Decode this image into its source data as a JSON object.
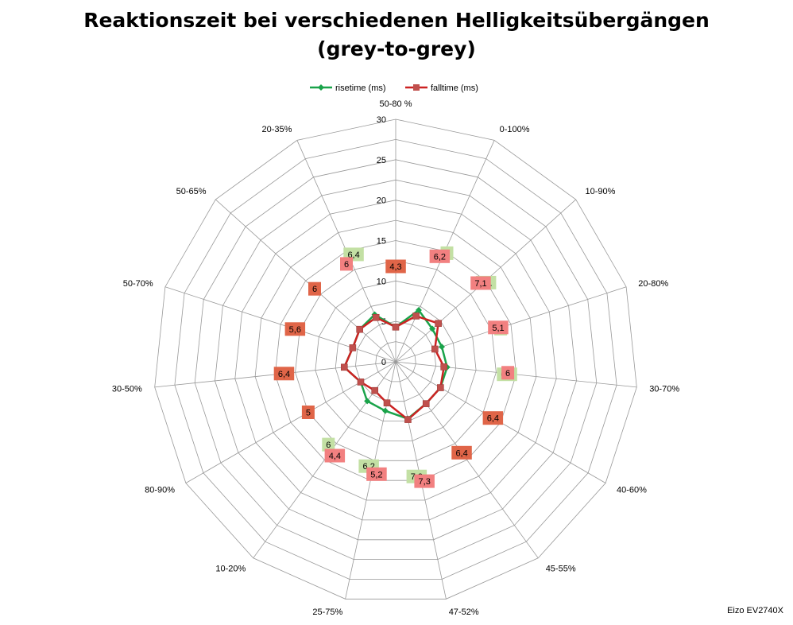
{
  "title_lines": [
    "Reaktionszeit bei verschiedenen Helligkeitsübergängen",
    "(grey-to-grey)"
  ],
  "credit": "Eizo EV2740X",
  "colors": {
    "rise": "#1aa34a",
    "fall": "#cc2222",
    "fall_marker": "#c0504d",
    "grid": "#999999",
    "label_rise_bg": "#c3e0a4",
    "label_fall_bg": "#f28080",
    "label_same_bg": "#e06548"
  },
  "chart_data": {
    "type": "radar",
    "categories": [
      "50-80 %",
      "0-100%",
      "10-90%",
      "20-80%",
      "30-70%",
      "40-60%",
      "45-55%",
      "47-52%",
      "25-75%",
      "10-20%",
      "80-90%",
      "30-50%",
      "50-70%",
      "50-65%",
      "20-35%"
    ],
    "series": [
      {
        "name": "risetime (ms)",
        "values": [
          4.3,
          7,
          6.1,
          6,
          6.4,
          6.4,
          6.4,
          7.2,
          6.2,
          6,
          5,
          6.4,
          5.6,
          6,
          6.4
        ],
        "labels": [
          "4,3",
          "7",
          "6,1",
          "6",
          "6,4",
          "6,4",
          "6,4",
          "7,2",
          "6,2",
          "6",
          "5",
          "6,4",
          "5,6",
          "6",
          "6,4"
        ]
      },
      {
        "name": "falltime (ms)",
        "values": [
          4.3,
          6.2,
          7.1,
          5.1,
          6,
          6.4,
          6.4,
          7.3,
          5.2,
          4.4,
          5,
          6.4,
          5.6,
          6,
          6
        ],
        "labels": [
          "4,3",
          "6,2",
          "7,1",
          "5,1",
          "6",
          "6,4",
          "6,4",
          "7,3",
          "5,2",
          "4,4",
          "5",
          "6,4",
          "5,6",
          "6",
          "6"
        ]
      }
    ],
    "radial_axis": {
      "min": 0,
      "max": 30,
      "major_step": 5,
      "tick_labels": [
        "0",
        "5",
        "10",
        "15",
        "20",
        "25",
        "30"
      ]
    },
    "legend_position": "top",
    "grid": true
  }
}
